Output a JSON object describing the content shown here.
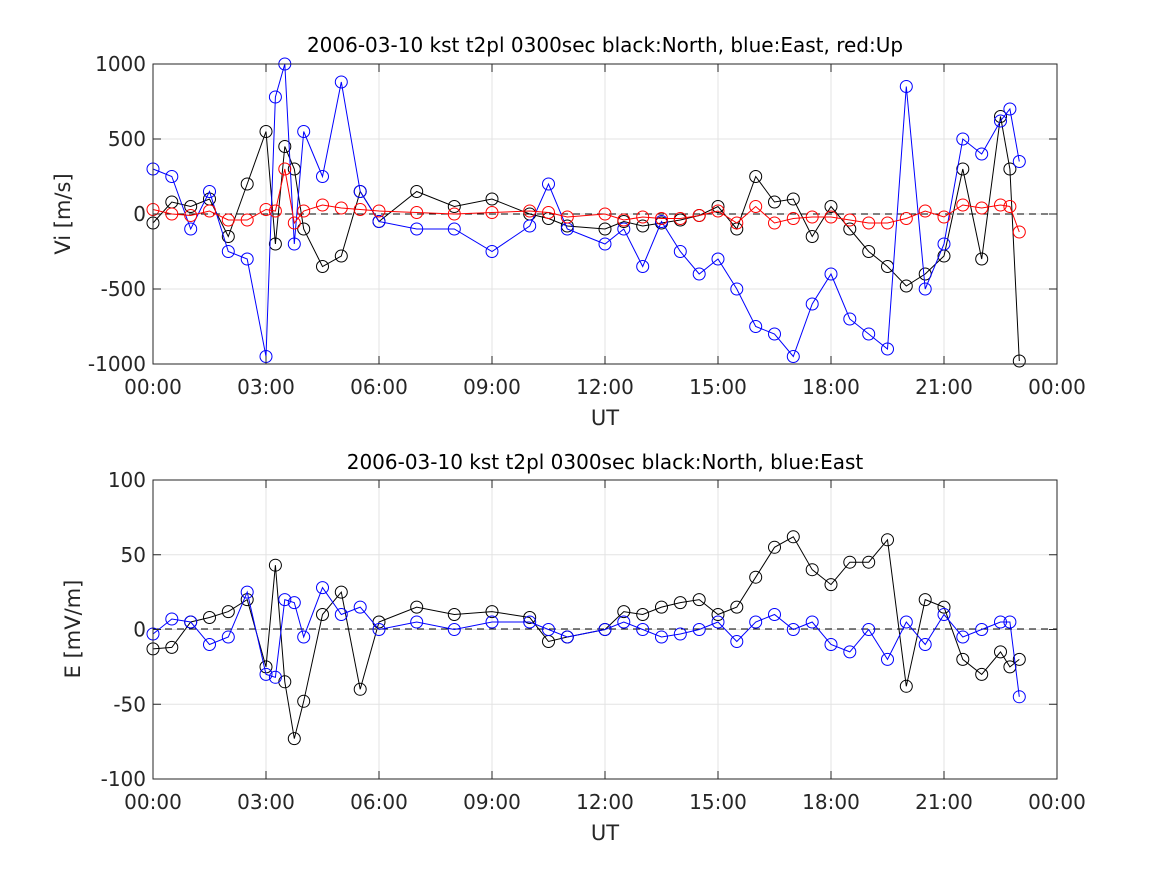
{
  "chart_data": [
    {
      "type": "scatter",
      "title": "2006-03-10 kst t2pl 0300sec black:North, blue:East, red:Up",
      "xlabel": "UT",
      "ylabel": "Vi [m/s]",
      "xlim_hours": [
        0,
        24
      ],
      "ylim": [
        -1000,
        1000
      ],
      "xticks": [
        "00:00",
        "03:00",
        "06:00",
        "09:00",
        "12:00",
        "15:00",
        "18:00",
        "21:00",
        "00:00"
      ],
      "yticks": [
        "-1000",
        "-500",
        "0",
        "500",
        "1000"
      ],
      "grid": true,
      "zero_line": "dashed",
      "colors": {
        "North": "#000000",
        "East": "#0000ff",
        "Up": "#ff0000"
      },
      "x_times_ut": [
        "00:00",
        "00:30",
        "01:00",
        "01:30",
        "02:00",
        "02:30",
        "03:00",
        "03:15",
        "03:30",
        "03:45",
        "04:00",
        "04:30",
        "05:00",
        "05:30",
        "06:00",
        "07:00",
        "08:00",
        "09:00",
        "10:00",
        "10:30",
        "11:00",
        "12:00",
        "12:30",
        "13:00",
        "13:30",
        "14:00",
        "14:30",
        "15:00",
        "15:30",
        "16:00",
        "16:30",
        "17:00",
        "17:30",
        "18:00",
        "18:30",
        "19:00",
        "19:30",
        "20:00",
        "20:30",
        "21:00",
        "21:30",
        "22:00",
        "22:30",
        "22:45",
        "23:00"
      ],
      "series": [
        {
          "name": "North",
          "values": [
            -60,
            80,
            50,
            100,
            -150,
            200,
            550,
            -200,
            450,
            300,
            -100,
            -350,
            -280,
            150,
            -50,
            150,
            50,
            100,
            0,
            -30,
            -80,
            -100,
            -50,
            -80,
            -60,
            -40,
            -10,
            50,
            -100,
            250,
            80,
            100,
            -150,
            50,
            -100,
            -250,
            -350,
            -480,
            -400,
            -280,
            300,
            -300,
            650,
            300,
            -980
          ]
        },
        {
          "name": "East",
          "values": [
            300,
            250,
            -100,
            150,
            -250,
            -300,
            -950,
            780,
            1000,
            -200,
            550,
            250,
            880,
            150,
            -50,
            -100,
            -100,
            -250,
            -80,
            200,
            -100,
            -200,
            -100,
            -350,
            -50,
            -250,
            -400,
            -300,
            -500,
            -750,
            -800,
            -950,
            -600,
            -400,
            -700,
            -800,
            -900,
            850,
            -500,
            -200,
            500,
            400,
            620,
            700,
            350
          ]
        },
        {
          "name": "Up",
          "values": [
            30,
            0,
            -10,
            20,
            -40,
            -40,
            30,
            20,
            300,
            -60,
            20,
            60,
            40,
            30,
            20,
            10,
            0,
            10,
            20,
            10,
            -20,
            0,
            -40,
            -20,
            -30,
            -30,
            -10,
            20,
            -60,
            50,
            -60,
            -30,
            -20,
            -20,
            -40,
            -60,
            -60,
            -30,
            20,
            -20,
            60,
            40,
            60,
            50,
            -120
          ]
        }
      ]
    },
    {
      "type": "scatter",
      "title": "2006-03-10 kst t2pl 0300sec black:North, blue:East",
      "xlabel": "UT",
      "ylabel": "E [mV/m]",
      "xlim_hours": [
        0,
        24
      ],
      "ylim": [
        -100,
        100
      ],
      "xticks": [
        "00:00",
        "03:00",
        "06:00",
        "09:00",
        "12:00",
        "15:00",
        "18:00",
        "21:00",
        "00:00"
      ],
      "yticks": [
        "-100",
        "-50",
        "0",
        "50",
        "100"
      ],
      "grid": true,
      "zero_line": "dashed",
      "colors": {
        "North": "#000000",
        "East": "#0000ff"
      },
      "x_times_ut": [
        "00:00",
        "00:30",
        "01:00",
        "01:30",
        "02:00",
        "02:30",
        "03:00",
        "03:15",
        "03:30",
        "03:45",
        "04:00",
        "04:30",
        "05:00",
        "05:30",
        "06:00",
        "07:00",
        "08:00",
        "09:00",
        "10:00",
        "10:30",
        "11:00",
        "12:00",
        "12:30",
        "13:00",
        "13:30",
        "14:00",
        "14:30",
        "15:00",
        "15:30",
        "16:00",
        "16:30",
        "17:00",
        "17:30",
        "18:00",
        "18:30",
        "19:00",
        "19:30",
        "20:00",
        "20:30",
        "21:00",
        "21:30",
        "22:00",
        "22:30",
        "22:45",
        "23:00"
      ],
      "series": [
        {
          "name": "North",
          "values": [
            -13,
            -12,
            5,
            8,
            12,
            20,
            -25,
            43,
            -35,
            -73,
            -48,
            10,
            25,
            -40,
            5,
            15,
            10,
            12,
            8,
            -8,
            -5,
            0,
            12,
            10,
            15,
            18,
            20,
            10,
            15,
            35,
            55,
            62,
            40,
            30,
            45,
            45,
            60,
            -38,
            20,
            15,
            -20,
            -30,
            -15,
            -25,
            -20
          ]
        },
        {
          "name": "East",
          "values": [
            -3,
            7,
            5,
            -10,
            -5,
            25,
            -30,
            -32,
            20,
            18,
            -5,
            28,
            10,
            15,
            0,
            5,
            0,
            5,
            5,
            0,
            -5,
            0,
            5,
            0,
            -5,
            -3,
            0,
            5,
            -8,
            5,
            10,
            0,
            5,
            -10,
            -15,
            0,
            -20,
            5,
            -10,
            10,
            -5,
            0,
            5,
            5,
            -45
          ]
        }
      ]
    }
  ]
}
